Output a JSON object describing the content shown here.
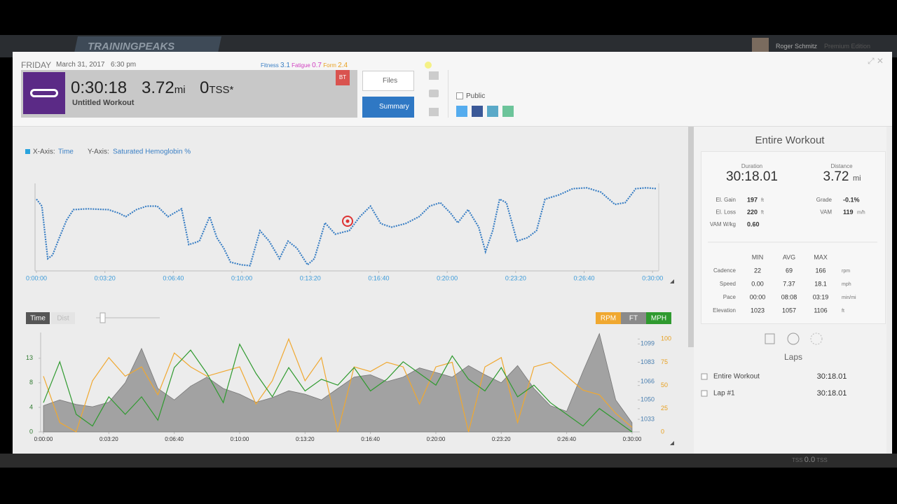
{
  "header": {
    "logo": "TRAININGPEAKS",
    "user": "Roger Schmitz",
    "edition": "Premium Edition"
  },
  "workout": {
    "day": "FRIDAY",
    "date": "March 31, 2017",
    "time": "6:30 pm",
    "fitness_label": "Fitness",
    "fitness": "3.1",
    "fatigue_label": "Fatigue",
    "fatigue": "0.7",
    "form_label": "Form",
    "form": "2.4",
    "duration": "0:30:18",
    "distance": "3.72",
    "distance_unit": "mi",
    "tss": "0",
    "tss_unit": "TSS*",
    "title": "Untitled Workout",
    "badge": "BT"
  },
  "buttons": {
    "files": "Files",
    "summary": "Summary",
    "public": "Public"
  },
  "chart_data": [
    {
      "type": "line",
      "x_axis_label": "X-Axis:",
      "x_axis_value": "Time",
      "y_axis_label": "Y-Axis:",
      "y_axis_value": "Saturated Hemoglobin %",
      "color": "#3a7fc4",
      "xlim": [
        0,
        1818
      ],
      "ylim": [
        0,
        100
      ],
      "xticks": [
        {
          "value": 0,
          "label": "0:00:00"
        },
        {
          "value": 200,
          "label": "0:03:20"
        },
        {
          "value": 400,
          "label": "0:06:40"
        },
        {
          "value": 600,
          "label": "0:10:00"
        },
        {
          "value": 800,
          "label": "0:13:20"
        },
        {
          "value": 1000,
          "label": "0:16:40"
        },
        {
          "value": 1200,
          "label": "0:20:00"
        },
        {
          "value": 1400,
          "label": "0:23:20"
        },
        {
          "value": 1600,
          "label": "0:26:40"
        },
        {
          "value": 1800,
          "label": "0:30:00"
        }
      ],
      "x": [
        0,
        16,
        33,
        47,
        67,
        88,
        108,
        149,
        210,
        241,
        261,
        292,
        322,
        353,
        384,
        424,
        445,
        476,
        506,
        527,
        547,
        567,
        598,
        624,
        653,
        680,
        710,
        735,
        761,
        792,
        812,
        843,
        873,
        914,
        945,
        976,
        1006,
        1037,
        1078,
        1118,
        1149,
        1180,
        1210,
        1231,
        1261,
        1292,
        1312,
        1333,
        1353,
        1373,
        1404,
        1435,
        1461,
        1486,
        1527,
        1567,
        1608,
        1649,
        1690,
        1720,
        1751,
        1782,
        1812
      ],
      "values": [
        82,
        74,
        14,
        18,
        38,
        58,
        70,
        71,
        70,
        66,
        62,
        70,
        74,
        74,
        62,
        71,
        30,
        34,
        62,
        38,
        26,
        10,
        7,
        6,
        46,
        34,
        14,
        34,
        26,
        7,
        14,
        55,
        42,
        46,
        62,
        74,
        54,
        50,
        54,
        62,
        74,
        78,
        66,
        55,
        70,
        50,
        22,
        46,
        82,
        78,
        34,
        38,
        46,
        82,
        87,
        94,
        95,
        90,
        76,
        78,
        94,
        95,
        94
      ]
    },
    {
      "type": "line",
      "toggle": [
        "Time",
        "Dist"
      ],
      "xlim": [
        0,
        1813
      ],
      "ylim": [
        0,
        17
      ],
      "yticks": [
        0,
        {
          "value": 4.2,
          "label": "4"
        },
        {
          "value": 8.4,
          "label": "8"
        },
        {
          "value": 12.6,
          "label": "13"
        }
      ],
      "y2lim": [
        1022,
        1109
      ],
      "y2ticks": [
        1033,
        1050,
        1066,
        1083,
        1099
      ],
      "y3lim": [
        0,
        107
      ],
      "y3ticks": [
        0,
        25,
        50,
        75,
        100
      ],
      "xticks": [
        {
          "value": 0,
          "label": "0:00:00"
        },
        {
          "value": 200,
          "label": "0:03:20"
        },
        {
          "value": 400,
          "label": "0:06:40"
        },
        {
          "value": 600,
          "label": "0:10:00"
        },
        {
          "value": 800,
          "label": "0:13:20"
        },
        {
          "value": 1000,
          "label": "0:16:40"
        },
        {
          "value": 1200,
          "label": "0:20:00"
        },
        {
          "value": 1400,
          "label": "0:23:20"
        },
        {
          "value": 1600,
          "label": "0:26:40"
        },
        {
          "value": 1800,
          "label": "0:30:00"
        }
      ],
      "x": [
        0,
        50,
        100,
        150,
        200,
        250,
        300,
        350,
        400,
        450,
        500,
        550,
        600,
        650,
        700,
        750,
        800,
        850,
        900,
        950,
        1000,
        1050,
        1100,
        1150,
        1200,
        1250,
        1300,
        1350,
        1400,
        1450,
        1500,
        1550,
        1600,
        1650,
        1700,
        1750,
        1800
      ],
      "series": [
        {
          "name": "RPM",
          "color": "#f0a830",
          "axis": "y3",
          "values": [
            60,
            10,
            0,
            55,
            80,
            60,
            70,
            40,
            85,
            70,
            60,
            65,
            70,
            30,
            55,
            100,
            55,
            80,
            0,
            70,
            65,
            75,
            70,
            30,
            70,
            75,
            0,
            70,
            80,
            10,
            70,
            75,
            60,
            45,
            40,
            20,
            5
          ]
        },
        {
          "name": "FT",
          "color": "#8a8a8a",
          "axis": "y2",
          "values": [
            1045,
            1050,
            1046,
            1044,
            1048,
            1065,
            1095,
            1060,
            1050,
            1062,
            1070,
            1060,
            1055,
            1048,
            1052,
            1058,
            1055,
            1050,
            1060,
            1070,
            1072,
            1066,
            1070,
            1078,
            1074,
            1070,
            1080,
            1072,
            1065,
            1080,
            1060,
            1045,
            1040,
            1075,
            1108,
            1050,
            1030
          ]
        },
        {
          "name": "MPH",
          "color": "#2f9a2f",
          "axis": "y",
          "values": [
            5,
            12,
            3,
            1,
            6,
            3,
            6,
            2,
            11,
            14,
            10,
            5,
            15,
            10,
            6,
            11,
            7,
            9,
            8,
            11,
            7,
            9,
            12,
            10,
            8,
            13,
            9,
            7,
            11,
            6,
            8,
            5,
            3,
            1,
            4,
            2,
            0
          ]
        }
      ]
    }
  ],
  "summary": {
    "title": "Entire Workout",
    "duration_label": "Duration",
    "duration": "30:18.01",
    "distance_label": "Distance",
    "distance": "3.72",
    "distance_unit": "mi",
    "left": [
      {
        "label": "El. Gain",
        "value": "197",
        "unit": "ft"
      },
      {
        "label": "El. Loss",
        "value": "220",
        "unit": "ft"
      },
      {
        "label": "VAM W/kg",
        "value": "0.60"
      }
    ],
    "right": [
      {
        "label": "Grade",
        "value": "-0.1%"
      },
      {
        "label": "VAM",
        "value": "119",
        "unit": "m/h"
      }
    ],
    "columns": [
      "MIN",
      "AVG",
      "MAX"
    ],
    "rows": [
      {
        "label": "Cadence",
        "values": [
          "22",
          "69",
          "166"
        ],
        "unit": "rpm"
      },
      {
        "label": "Speed",
        "values": [
          "0.00",
          "7.37",
          "18.1"
        ],
        "unit": "mph"
      },
      {
        "label": "Pace",
        "values": [
          "00:00",
          "08:08",
          "03:19"
        ],
        "unit": "min/mi"
      },
      {
        "label": "Elevation",
        "values": [
          "1023",
          "1057",
          "1106"
        ],
        "unit": "ft"
      }
    ]
  },
  "laps": {
    "title": "Laps",
    "rows": [
      {
        "name": "Entire Workout",
        "time": "30:18.01"
      },
      {
        "name": "Lap #1",
        "time": "30:18.01"
      }
    ]
  },
  "footer": {
    "tss_label": "TSS",
    "tss": "0.0",
    "tss_unit": "TSS"
  }
}
